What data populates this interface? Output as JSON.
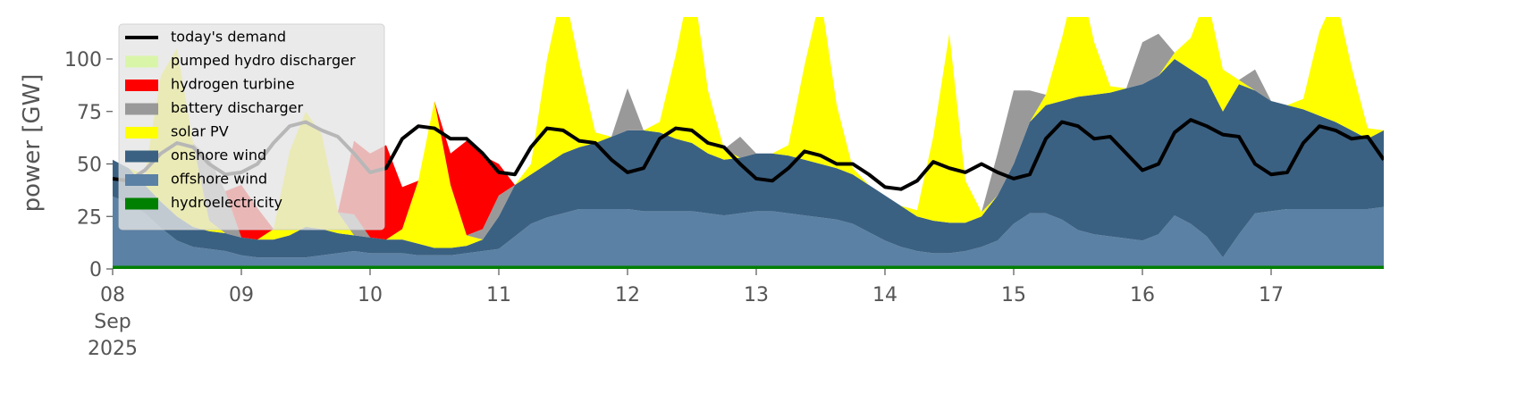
{
  "chart_data": {
    "type": "area",
    "ylabel": "power [GW]",
    "x": [
      0,
      3,
      6,
      9,
      12,
      15,
      18,
      21,
      24,
      27,
      30,
      33,
      36,
      39,
      42,
      45,
      48,
      51,
      54,
      57,
      60,
      63,
      66,
      69,
      72,
      75,
      78,
      81,
      84,
      87,
      90,
      93,
      96,
      99,
      102,
      105,
      108,
      111,
      114,
      117,
      120,
      123,
      126,
      129,
      132,
      135,
      138,
      141,
      144,
      147,
      150,
      153,
      156,
      159,
      162,
      165,
      168,
      171,
      174,
      177,
      180,
      183,
      186,
      189,
      192,
      195,
      198,
      201,
      204,
      207,
      210,
      213,
      216,
      219,
      222,
      225,
      228,
      231,
      234,
      237
    ],
    "xlim": [
      0,
      237
    ],
    "xticks": [
      {
        "value": 0,
        "label": "08"
      },
      {
        "value": 24,
        "label": "09"
      },
      {
        "value": 48,
        "label": "10"
      },
      {
        "value": 72,
        "label": "11"
      },
      {
        "value": 96,
        "label": "12"
      },
      {
        "value": 120,
        "label": "13"
      },
      {
        "value": 144,
        "label": "14"
      },
      {
        "value": 168,
        "label": "15"
      },
      {
        "value": 192,
        "label": "16"
      },
      {
        "value": 216,
        "label": "17"
      }
    ],
    "x_start_month": "Sep",
    "x_start_year": "2025",
    "ylim": [
      0,
      120
    ],
    "yticks": [
      0,
      25,
      50,
      75,
      100
    ],
    "legend": "upper left",
    "series": [
      {
        "name": "today's demand",
        "style": "line",
        "color": "#000000",
        "values": [
          43,
          42,
          47,
          55,
          60,
          58,
          50,
          45,
          46,
          50,
          60,
          68,
          70,
          66,
          63,
          55,
          46,
          48,
          62,
          68,
          67,
          62,
          62,
          55,
          46,
          45,
          58,
          67,
          66,
          61,
          60,
          52,
          46,
          48,
          62,
          67,
          66,
          60,
          58,
          50,
          43,
          42,
          48,
          56,
          54,
          50,
          50,
          45,
          39,
          38,
          42,
          51,
          48,
          46,
          50,
          46,
          43,
          45,
          62,
          70,
          68,
          62,
          63,
          55,
          47,
          50,
          65,
          71,
          68,
          64,
          63,
          50,
          45,
          46,
          60,
          68,
          66,
          62,
          63,
          52
        ]
      },
      {
        "name": "pumped hydro discharger",
        "style": "area",
        "color": "#d9f5a8",
        "values": [
          0,
          0,
          0,
          0,
          0,
          0,
          0,
          0,
          0,
          0,
          0,
          0,
          0,
          0,
          0,
          0,
          0,
          0,
          0,
          0,
          0,
          0,
          0,
          0,
          0,
          0,
          0,
          0,
          0,
          0,
          0,
          0,
          0,
          0,
          0,
          0,
          0,
          0,
          0,
          0,
          0,
          0,
          0,
          0,
          0,
          0,
          0,
          0,
          0,
          0,
          0,
          0,
          0,
          0,
          0,
          0,
          0,
          0,
          0,
          0,
          0,
          0,
          0,
          0,
          0,
          0,
          0,
          0,
          0,
          0,
          0,
          0,
          0,
          0,
          0,
          0,
          0,
          0,
          0,
          0
        ]
      },
      {
        "name": "hydrogen turbine",
        "style": "area",
        "color": "#ff0000",
        "values": [
          0,
          0,
          0,
          0,
          0,
          0,
          0,
          0,
          25,
          15,
          0,
          0,
          0,
          0,
          0,
          35,
          40,
          45,
          20,
          0,
          0,
          15,
          45,
          35,
          15,
          0,
          0,
          0,
          0,
          0,
          0,
          0,
          0,
          0,
          0,
          0,
          0,
          0,
          0,
          0,
          0,
          0,
          0,
          0,
          0,
          0,
          0,
          0,
          0,
          0,
          0,
          0,
          0,
          0,
          0,
          0,
          0,
          0,
          0,
          0,
          0,
          0,
          0,
          0,
          0,
          0,
          0,
          0,
          0,
          0,
          0,
          0,
          0,
          0,
          0,
          0,
          0,
          0,
          0,
          0
        ]
      },
      {
        "name": "battery discharger",
        "style": "area",
        "color": "#999999",
        "values": [
          0,
          0,
          0,
          0,
          0,
          0,
          30,
          20,
          0,
          0,
          0,
          0,
          0,
          0,
          0,
          10,
          0,
          0,
          0,
          0,
          0,
          0,
          0,
          5,
          10,
          0,
          0,
          0,
          0,
          0,
          0,
          0,
          20,
          0,
          0,
          0,
          0,
          0,
          0,
          10,
          0,
          0,
          0,
          0,
          0,
          0,
          0,
          0,
          0,
          0,
          0,
          0,
          0,
          0,
          0,
          20,
          35,
          15,
          0,
          0,
          0,
          0,
          0,
          0,
          20,
          20,
          0,
          0,
          0,
          0,
          0,
          10,
          0,
          0,
          0,
          0,
          0,
          0,
          0,
          0
        ]
      },
      {
        "name": "solar PV",
        "style": "area",
        "color": "#ffff00",
        "values": [
          0,
          0,
          5,
          60,
          80,
          40,
          5,
          0,
          0,
          0,
          5,
          40,
          55,
          45,
          10,
          0,
          0,
          0,
          5,
          30,
          70,
          30,
          5,
          0,
          0,
          0,
          5,
          50,
          80,
          40,
          5,
          0,
          0,
          0,
          5,
          40,
          80,
          30,
          5,
          0,
          0,
          0,
          5,
          45,
          80,
          30,
          3,
          0,
          0,
          0,
          3,
          40,
          90,
          20,
          2,
          0,
          0,
          0,
          5,
          30,
          60,
          25,
          3,
          0,
          0,
          0,
          3,
          15,
          40,
          20,
          2,
          0,
          0,
          0,
          5,
          40,
          60,
          30,
          5,
          0
        ]
      },
      {
        "name": "onshore wind",
        "style": "area",
        "color": "#3b6182",
        "values": [
          17.5,
          16.5,
          13.5,
          12.5,
          11.5,
          9.5,
          8.5,
          8.5,
          8.5,
          8.5,
          8.5,
          10.5,
          14.5,
          12.5,
          9.5,
          7.5,
          7.5,
          6.5,
          6.5,
          5.5,
          3.5,
          3.5,
          3.5,
          5.5,
          15.5,
          24.5,
          23.5,
          25.5,
          28.5,
          29.5,
          31.5,
          34.5,
          37.5,
          38.5,
          37.5,
          34.5,
          32.5,
          28.5,
          26.5,
          26.5,
          27.5,
          27.5,
          27.5,
          26.5,
          25.5,
          24.5,
          23.5,
          22.5,
          21.5,
          19.5,
          16.5,
          15.5,
          14.5,
          13.5,
          14.5,
          21.5,
          28.5,
          43.5,
          51.5,
          56.5,
          63.5,
          66.5,
          68.5,
          71.5,
          74.5,
          75.5,
          74.5,
          73.5,
          74.5,
          69.5,
          71.5,
          58.5,
          52.5,
          49.5,
          47.5,
          44.5,
          41.5,
          37.5,
          33.5,
          36.5
        ]
      },
      {
        "name": "offshore wind",
        "style": "area",
        "color": "#5b81a4",
        "values": [
          33,
          30,
          25,
          18,
          12,
          9,
          8,
          7,
          5,
          4,
          4,
          4,
          4,
          5,
          6,
          7,
          6,
          6,
          6,
          5,
          5,
          5,
          6,
          7,
          8,
          14,
          20,
          23,
          25,
          27,
          27,
          27,
          27,
          26,
          26,
          26,
          26,
          25,
          24,
          25,
          26,
          26,
          25,
          24,
          23,
          22,
          20,
          16,
          12,
          9,
          7,
          6,
          6,
          7,
          9,
          12,
          20,
          25,
          25,
          22,
          17,
          15,
          14,
          13,
          12,
          15,
          24,
          20,
          14,
          4,
          15,
          25,
          26,
          27,
          27,
          27,
          27,
          27,
          27,
          28
        ]
      },
      {
        "name": "hydroelectricity",
        "style": "area",
        "color": "#008000",
        "values": [
          1.5,
          1.5,
          1.5,
          1.5,
          1.5,
          1.5,
          1.5,
          1.5,
          1.5,
          1.5,
          1.5,
          1.5,
          1.5,
          1.5,
          1.5,
          1.5,
          1.5,
          1.5,
          1.5,
          1.5,
          1.5,
          1.5,
          1.5,
          1.5,
          1.5,
          1.5,
          1.5,
          1.5,
          1.5,
          1.5,
          1.5,
          1.5,
          1.5,
          1.5,
          1.5,
          1.5,
          1.5,
          1.5,
          1.5,
          1.5,
          1.5,
          1.5,
          1.5,
          1.5,
          1.5,
          1.5,
          1.5,
          1.5,
          1.5,
          1.5,
          1.5,
          1.5,
          1.5,
          1.5,
          1.5,
          1.5,
          1.5,
          1.5,
          1.5,
          1.5,
          1.5,
          1.5,
          1.5,
          1.5,
          1.5,
          1.5,
          1.5,
          1.5,
          1.5,
          1.5,
          1.5,
          1.5,
          1.5,
          1.5,
          1.5,
          1.5,
          1.5,
          1.5,
          1.5,
          1.5
        ]
      }
    ]
  }
}
